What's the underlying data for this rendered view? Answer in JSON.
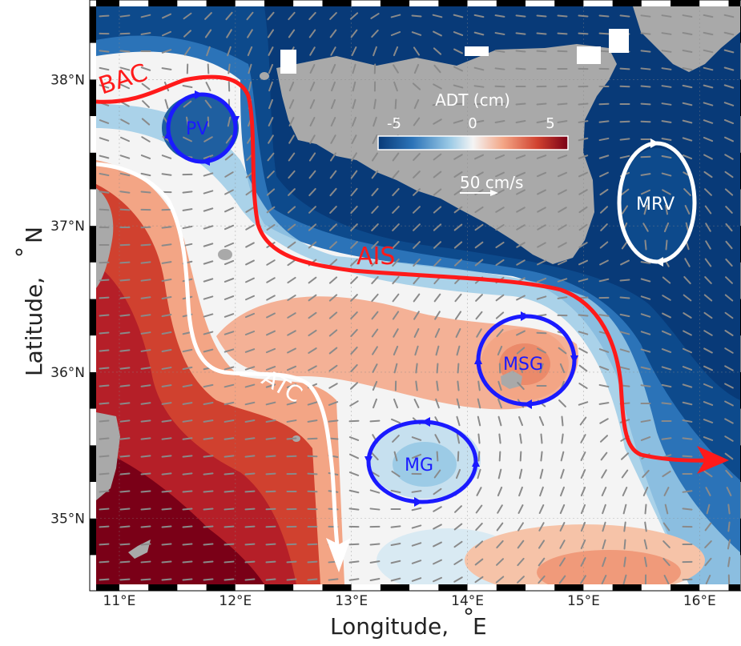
{
  "map": {
    "xlabel": "Longitude,",
    "xlabel_degree": "°",
    "xlabel_unit": "E",
    "ylabel": "Latitude,",
    "ylabel_degree": "°",
    "ylabel_unit": "N",
    "lon_range": [
      10.8,
      16.35
    ],
    "lat_range": [
      34.55,
      38.5
    ],
    "lon_ticks": [
      "11°E",
      "12°E",
      "13°E",
      "14°E",
      "15°E",
      "16°E"
    ],
    "lat_ticks": [
      "35°N",
      "36°N",
      "37°N",
      "38°N"
    ],
    "lon_tick_values": [
      11,
      12,
      13,
      14,
      15,
      16
    ],
    "lat_tick_values": [
      35,
      36,
      37,
      38
    ],
    "grid": true
  },
  "colorbar": {
    "title": "ADT (cm)",
    "tick_labels": [
      "-5",
      "0",
      "5"
    ],
    "range": [
      -6.5,
      6.5
    ],
    "colors": [
      "#083a78",
      "#2b73b8",
      "#9ccbe6",
      "#f4f4f4",
      "#f3a585",
      "#d0412f",
      "#7a0017"
    ]
  },
  "scale": {
    "label": "50 cm/s",
    "value_cm_s": 50
  },
  "features": [
    {
      "label": "BAC",
      "kind": "current",
      "color": "#ff1a1a"
    },
    {
      "label": "AIS",
      "kind": "current",
      "color": "#ff1a1a"
    },
    {
      "label": "ATC",
      "kind": "current",
      "color": "#ffffff"
    },
    {
      "label": "PV",
      "kind": "eddy",
      "color": "#1a1aff"
    },
    {
      "label": "MSG",
      "kind": "eddy",
      "color": "#1a1aff"
    },
    {
      "label": "MG",
      "kind": "eddy",
      "color": "#1a1aff"
    },
    {
      "label": "MRV",
      "kind": "eddy",
      "color": "#ffffff"
    }
  ],
  "colors": {
    "land": "#a9a9a9",
    "deep_blue": "#083a78",
    "dark_red": "#7a0017"
  }
}
